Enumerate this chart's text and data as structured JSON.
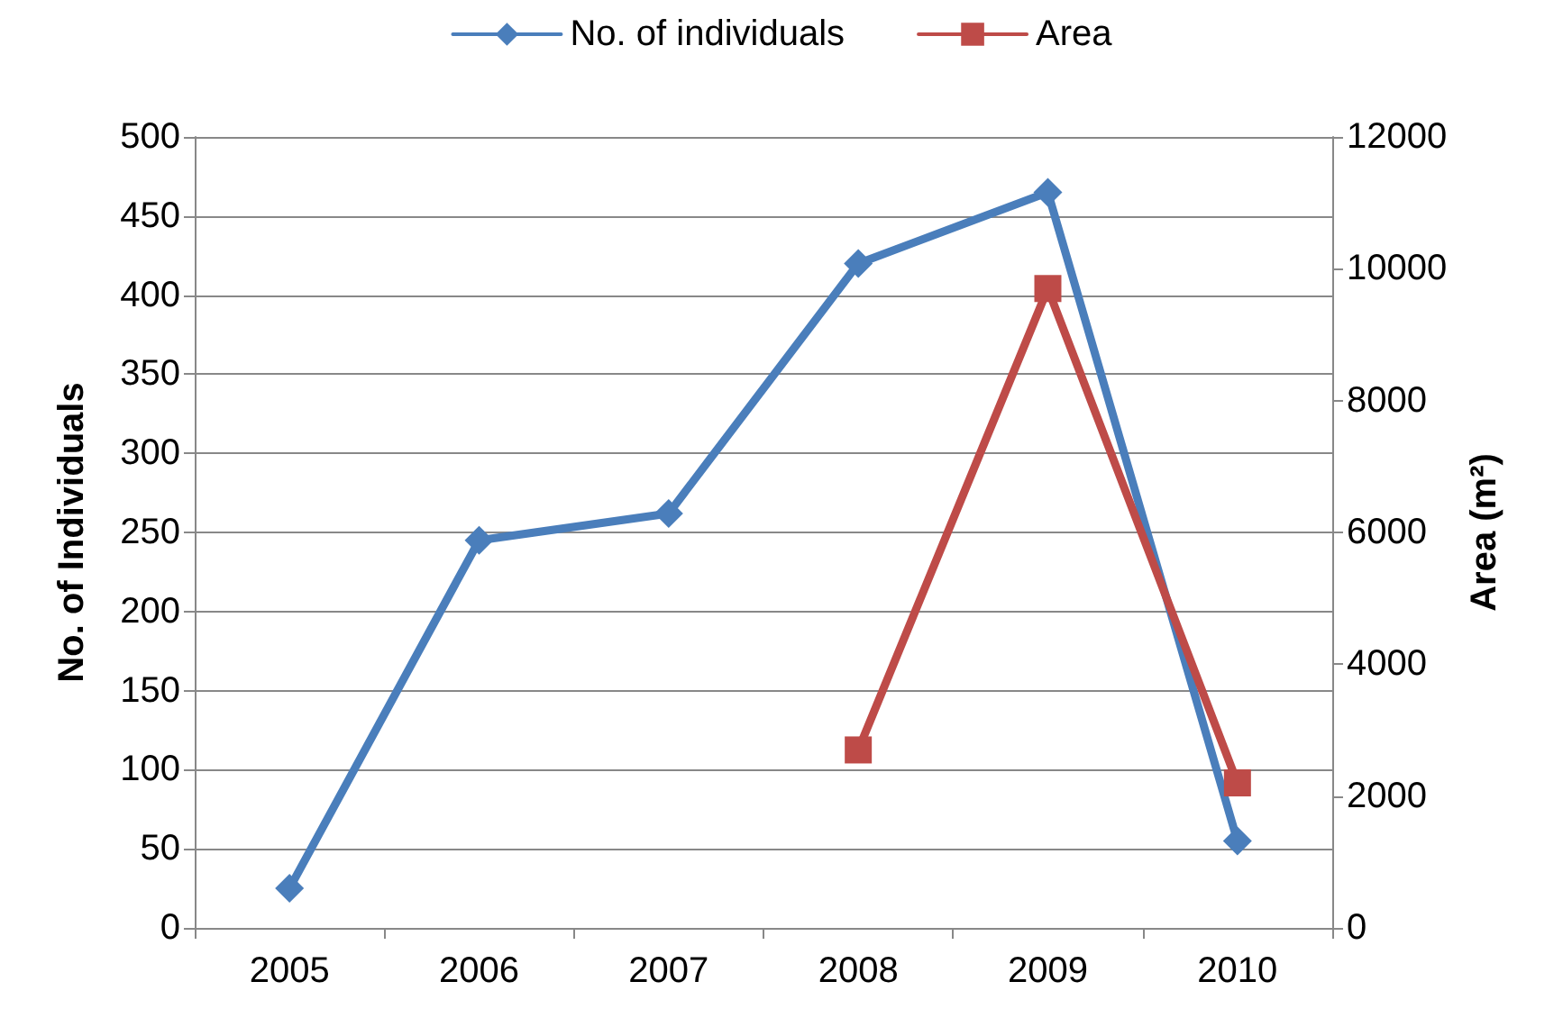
{
  "chart_data": {
    "type": "line",
    "categories": [
      "2005",
      "2006",
      "2007",
      "2008",
      "2009",
      "2010"
    ],
    "series": [
      {
        "name": "No. of individuals",
        "color": "#4a7ebb",
        "marker": "diamond",
        "values": [
          25,
          245,
          262,
          420,
          465,
          55
        ]
      },
      {
        "name": "Area",
        "color": "#be4b48",
        "marker": "square",
        "axis": "y2",
        "values": [
          null,
          null,
          null,
          2700,
          9700,
          2200
        ]
      }
    ],
    "ylabel": "No. of Individuals",
    "y2label": "Area (m²)",
    "ylim": [
      0,
      500
    ],
    "yticks": [
      0,
      50,
      100,
      150,
      200,
      250,
      300,
      350,
      400,
      450,
      500
    ],
    "y2lim": [
      0,
      12000
    ],
    "y2ticks": [
      0,
      2000,
      4000,
      6000,
      8000,
      10000,
      12000
    ],
    "grid": "y",
    "legend": "top",
    "line_style": "solid"
  }
}
